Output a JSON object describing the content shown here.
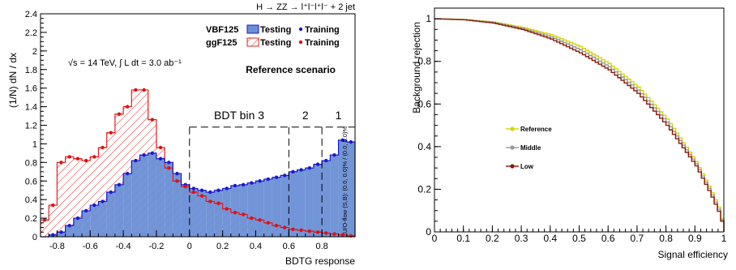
{
  "left_panel": {
    "header": "H → ZZ → l⁺l⁻l⁺l⁻ + 2 jet",
    "legend": [
      {
        "group": "VBF125",
        "testing": "Testing",
        "training": "Training",
        "fill": "#6a8fd6",
        "marker": "#1a1acc"
      },
      {
        "group": "ggF125",
        "testing": "Testing",
        "training": "Training",
        "fill": "#e02020",
        "marker": "#e01010"
      }
    ],
    "energy_text": "√s = 14 TeV, ∫ L dt = 3.0 ab⁻¹",
    "scenario": "Reference scenario",
    "bins_labels": [
      "BDT bin 3",
      "2",
      "1"
    ],
    "overflow_text": "U/O-flow (S,B): (0.0, 0.0)% / (0.0, 0.0)%"
  },
  "right_panel": {},
  "chart_data": [
    {
      "type": "area",
      "xlabel": "BDTG response",
      "ylabel": "(1/N) dN / dx",
      "xlim": [
        -0.9,
        1.0
      ],
      "ylim": [
        0,
        2.4
      ],
      "xticks": [
        "-0.8",
        "-0.6",
        "-0.4",
        "-0.2",
        "0",
        "0.2",
        "0.4",
        "0.6",
        "0.8"
      ],
      "yticks": [
        "0",
        "0.2",
        "0.4",
        "0.6",
        "0.8",
        "1",
        "1.2",
        "1.4",
        "1.6",
        "1.8",
        "2",
        "2.2",
        "2.4"
      ],
      "bin_edges": [
        -0.9,
        -0.85,
        -0.8,
        -0.75,
        -0.7,
        -0.65,
        -0.6,
        -0.55,
        -0.5,
        -0.45,
        -0.4,
        -0.35,
        -0.3,
        -0.25,
        -0.2,
        -0.15,
        -0.1,
        -0.05,
        0.0,
        0.05,
        0.1,
        0.15,
        0.2,
        0.25,
        0.3,
        0.35,
        0.4,
        0.45,
        0.5,
        0.55,
        0.6,
        0.65,
        0.7,
        0.75,
        0.8,
        0.85,
        0.9,
        0.95,
        1.0
      ],
      "series": [
        {
          "name": "VBF125",
          "values": [
            0.0,
            0.02,
            0.05,
            0.12,
            0.2,
            0.28,
            0.34,
            0.38,
            0.48,
            0.56,
            0.68,
            0.82,
            0.88,
            0.9,
            0.84,
            0.8,
            0.68,
            0.56,
            0.52,
            0.5,
            0.48,
            0.5,
            0.52,
            0.55,
            0.56,
            0.58,
            0.6,
            0.62,
            0.64,
            0.66,
            0.7,
            0.72,
            0.74,
            0.78,
            0.82,
            0.88,
            1.04,
            1.02
          ]
        },
        {
          "name": "ggF125",
          "values": [
            0.18,
            0.34,
            0.8,
            0.86,
            0.84,
            0.82,
            0.86,
            0.96,
            1.12,
            1.32,
            1.4,
            1.58,
            1.58,
            1.26,
            0.96,
            0.74,
            0.6,
            0.54,
            0.48,
            0.44,
            0.38,
            0.36,
            0.3,
            0.26,
            0.24,
            0.2,
            0.18,
            0.15,
            0.12,
            0.1,
            0.08,
            0.07,
            0.06,
            0.05,
            0.04,
            0.03,
            0.02,
            0.01
          ]
        }
      ],
      "bdt_bin_edges": [
        0.0,
        0.6,
        0.8
      ],
      "bdt_bin_top": 1.18
    },
    {
      "type": "line",
      "xlabel": "Signal efficiency",
      "ylabel": "Background rejection",
      "xlim": [
        0,
        1
      ],
      "ylim": [
        0,
        1.05
      ],
      "xticks": [
        "0",
        "0.1",
        "0.2",
        "0.3",
        "0.4",
        "0.5",
        "0.6",
        "0.7",
        "0.8",
        "0.9",
        "1"
      ],
      "yticks": [
        "0",
        "0.2",
        "0.4",
        "0.6",
        "0.8",
        "1"
      ],
      "legend_placement": "middle-left",
      "x": [
        0,
        0.1,
        0.2,
        0.3,
        0.4,
        0.5,
        0.6,
        0.7,
        0.8,
        0.9,
        0.95,
        0.98,
        1.0
      ],
      "series": [
        {
          "name": "Reference",
          "color": "#d4d400",
          "values": [
            1.0,
            0.997,
            0.985,
            0.96,
            0.925,
            0.87,
            0.79,
            0.68,
            0.53,
            0.33,
            0.2,
            0.11,
            0.0
          ]
        },
        {
          "name": "Middle",
          "color": "#999999",
          "values": [
            1.0,
            0.996,
            0.983,
            0.955,
            0.915,
            0.855,
            0.775,
            0.665,
            0.515,
            0.32,
            0.19,
            0.1,
            0.0
          ]
        },
        {
          "name": "Low",
          "color": "#8b1a0a",
          "values": [
            1.0,
            0.995,
            0.98,
            0.95,
            0.905,
            0.84,
            0.76,
            0.65,
            0.5,
            0.31,
            0.18,
            0.09,
            0.0
          ]
        }
      ]
    }
  ]
}
